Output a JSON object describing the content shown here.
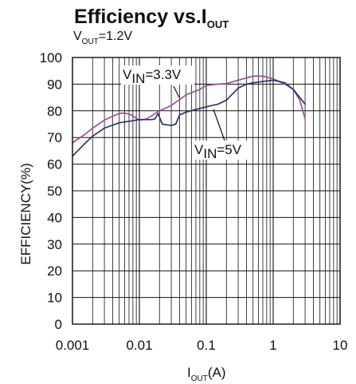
{
  "chart_data": {
    "type": "line",
    "title_main": "Efficiency vs.I",
    "title_sub": "OUT",
    "subtitle_main": "V",
    "subtitle_sub": "OUT",
    "subtitle_rest": "=1.2V",
    "xlabel_main": "I",
    "xlabel_sub": "OUT",
    "xlabel_rest": "(A)",
    "ylabel": "EFFICIENCY(%)",
    "x_scale": "log",
    "xlim": [
      0.001,
      10
    ],
    "ylim": [
      0,
      100
    ],
    "grid": true,
    "x_ticks": [
      "0.001",
      "0.01",
      "0.1",
      "1",
      "10"
    ],
    "y_ticks": [
      "0",
      "10",
      "20",
      "30",
      "40",
      "50",
      "60",
      "70",
      "80",
      "90",
      "100"
    ],
    "series": [
      {
        "label_main": "V",
        "label_sub": "IN",
        "label_rest": "=3.3V",
        "color": "#9b4f9b",
        "x": [
          0.001,
          0.0015,
          0.002,
          0.003,
          0.004,
          0.005,
          0.006,
          0.0075,
          0.01,
          0.013,
          0.02,
          0.03,
          0.05,
          0.08,
          0.1,
          0.15,
          0.2,
          0.3,
          0.5,
          0.7,
          1,
          1.5,
          2,
          2.5,
          3
        ],
        "y": [
          68,
          71,
          73.5,
          76.5,
          78,
          79,
          79.2,
          78.5,
          76.5,
          77,
          80,
          82,
          86,
          88,
          89.5,
          90,
          90.2,
          91.5,
          93,
          93,
          92,
          90,
          88,
          84,
          77
        ]
      },
      {
        "label_main": "V",
        "label_sub": "IN",
        "label_rest": "=5V",
        "color": "#2e3368",
        "x": [
          0.001,
          0.0015,
          0.002,
          0.003,
          0.005,
          0.008,
          0.01,
          0.015,
          0.017,
          0.019,
          0.022,
          0.025,
          0.03,
          0.035,
          0.04,
          0.05,
          0.07,
          0.1,
          0.15,
          0.2,
          0.3,
          0.4,
          0.5,
          0.7,
          1,
          1.5,
          2,
          3
        ],
        "y": [
          63,
          67.5,
          70.5,
          73.5,
          75.5,
          76.3,
          76.7,
          76.7,
          76.9,
          79,
          75,
          74.8,
          74.5,
          75,
          78.5,
          79.5,
          80.5,
          81.5,
          82.5,
          84,
          88.5,
          90,
          90.5,
          91,
          91.5,
          90.5,
          88,
          82.5
        ]
      }
    ]
  }
}
